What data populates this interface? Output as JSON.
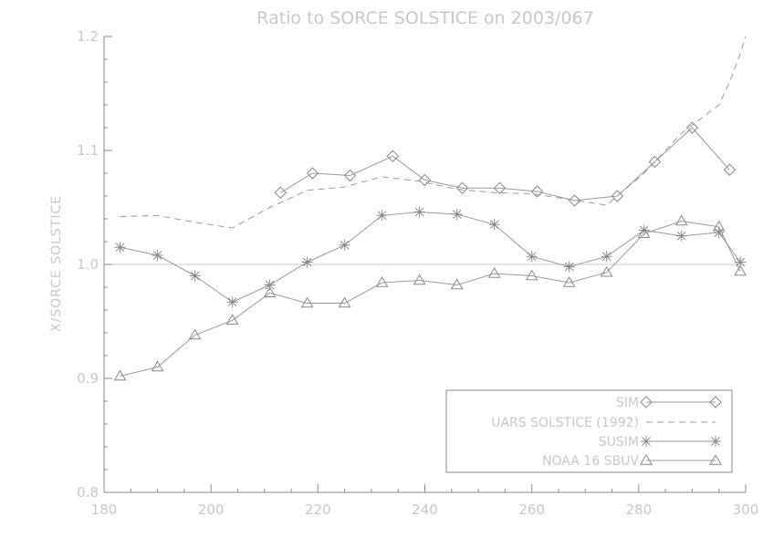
{
  "chart_data": {
    "type": "line",
    "title": "Ratio to SORCE SOLSTICE on 2003/067",
    "xlabel": "",
    "ylabel": "X/SORCE SOLSTICE",
    "xlim": [
      180,
      300
    ],
    "ylim": [
      0.8,
      1.2
    ],
    "x_ticks": [
      "180",
      "200",
      "220",
      "240",
      "260",
      "280",
      "300"
    ],
    "y_ticks": [
      "0.8",
      "0.9",
      "1.0",
      "1.1",
      "1.2"
    ],
    "x_tick_values": [
      180,
      200,
      220,
      240,
      260,
      280,
      300
    ],
    "y_tick_values": [
      0.8,
      0.9,
      1.0,
      1.1,
      1.2
    ],
    "reference_line": 1.0,
    "legend_position": "bottom-right",
    "series": [
      {
        "name": "SIM",
        "marker": "diamond",
        "line": "solid",
        "x": [
          213,
          219,
          226,
          234,
          240,
          247,
          254,
          261,
          268,
          276,
          283,
          290,
          297
        ],
        "y": [
          1.063,
          1.08,
          1.078,
          1.095,
          1.074,
          1.067,
          1.067,
          1.064,
          1.056,
          1.06,
          1.09,
          1.12,
          1.083
        ]
      },
      {
        "name": "UARS SOLSTICE (1992)",
        "marker": "none",
        "line": "dashed",
        "x": [
          183,
          190,
          197,
          204,
          211,
          218,
          225,
          232,
          239,
          246,
          253,
          260,
          267,
          274,
          281,
          288,
          295,
          297,
          299,
          300
        ],
        "y": [
          1.042,
          1.043,
          1.037,
          1.032,
          1.05,
          1.065,
          1.068,
          1.077,
          1.073,
          1.066,
          1.063,
          1.062,
          1.057,
          1.052,
          1.08,
          1.115,
          1.14,
          1.16,
          1.185,
          1.2
        ]
      },
      {
        "name": "SUSIM",
        "marker": "asterisk",
        "line": "solid",
        "x": [
          183,
          190,
          197,
          204,
          211,
          218,
          225,
          232,
          239,
          246,
          253,
          260,
          267,
          274,
          281,
          288,
          295,
          299
        ],
        "y": [
          1.015,
          1.008,
          0.99,
          0.967,
          0.982,
          1.002,
          1.017,
          1.043,
          1.046,
          1.044,
          1.035,
          1.007,
          0.998,
          1.007,
          1.03,
          1.025,
          1.028,
          1.002
        ]
      },
      {
        "name": "NOAA 16 SBUV",
        "marker": "triangle",
        "line": "solid",
        "x": [
          183,
          190,
          197,
          204,
          211,
          218,
          225,
          232,
          239,
          246,
          253,
          260,
          267,
          274,
          281,
          288,
          295,
          299
        ],
        "y": [
          0.902,
          0.91,
          0.938,
          0.951,
          0.975,
          0.966,
          0.966,
          0.984,
          0.986,
          0.982,
          0.992,
          0.99,
          0.984,
          0.993,
          1.027,
          1.038,
          1.033,
          0.994
        ]
      }
    ]
  }
}
